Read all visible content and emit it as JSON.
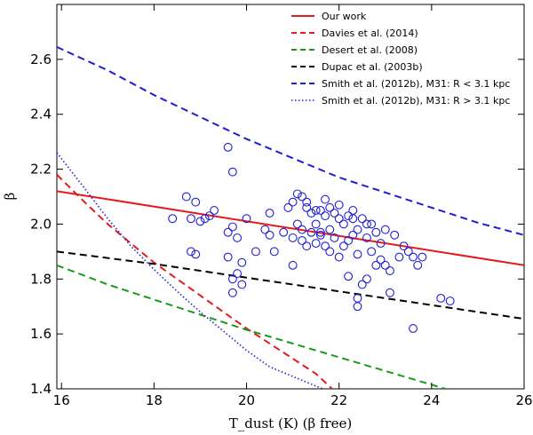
{
  "chart_data": {
    "type": "scatter",
    "xlabel": "T_dust (K) (β free)",
    "ylabel": "β",
    "xlim": [
      15.9,
      26
    ],
    "ylim": [
      1.4,
      2.8
    ],
    "xticks": [
      "16",
      "18",
      "20",
      "22",
      "24",
      "26"
    ],
    "yticks": [
      "1.4",
      "1.6",
      "1.8",
      "2.0",
      "2.2",
      "2.4",
      "2.6"
    ],
    "xtick_values": [
      16,
      18,
      20,
      22,
      24,
      26
    ],
    "ytick_values": [
      1.4,
      1.6,
      1.8,
      2.0,
      2.2,
      2.4,
      2.6
    ],
    "grid": false,
    "legend_position": "top-right",
    "series": [
      {
        "name": "Our work",
        "style": "solid",
        "color": "#e41a1c",
        "x": [
          15.9,
          26
        ],
        "y": [
          2.12,
          1.85
        ]
      },
      {
        "name": "Davies et al. (2014)",
        "style": "dashed",
        "color": "#e41a1c",
        "x": [
          15.9,
          16.5,
          17,
          17.5,
          18,
          18.5,
          19,
          19.5,
          20,
          20.5,
          21,
          21.5,
          21.85
        ],
        "y": [
          2.18,
          2.08,
          2.0,
          1.93,
          1.86,
          1.8,
          1.74,
          1.68,
          1.62,
          1.565,
          1.51,
          1.455,
          1.4
        ]
      },
      {
        "name": "Desert et al. (2008)",
        "style": "dashed",
        "color": "#1a9a1a",
        "x": [
          15.9,
          17,
          18,
          19,
          20,
          21,
          22,
          23,
          24.3
        ],
        "y": [
          1.85,
          1.78,
          1.725,
          1.67,
          1.615,
          1.565,
          1.515,
          1.465,
          1.4
        ]
      },
      {
        "name": "Dupac et al. (2003b)",
        "style": "dashed",
        "color": "#000000",
        "x": [
          15.9,
          18,
          20,
          22,
          24,
          26
        ],
        "y": [
          1.9,
          1.855,
          1.805,
          1.755,
          1.705,
          1.655
        ]
      },
      {
        "name": "Smith et al. (2012b), M31: R < 3.1 kpc",
        "style": "dashed",
        "color": "#1f1fd1",
        "x": [
          15.9,
          17,
          18,
          19,
          20,
          21,
          22,
          23,
          24,
          25,
          26
        ],
        "y": [
          2.645,
          2.56,
          2.47,
          2.39,
          2.31,
          2.24,
          2.17,
          2.115,
          2.06,
          2.005,
          1.96
        ]
      },
      {
        "name": "Smith et al. (2012b), M31: R > 3.1 kpc",
        "style": "dotted",
        "color": "#1f1fd1",
        "x": [
          15.9,
          16.5,
          17,
          17.5,
          18,
          18.5,
          19,
          19.5,
          20,
          20.5,
          21,
          21.5,
          21.65
        ],
        "y": [
          2.26,
          2.13,
          2.02,
          1.92,
          1.835,
          1.755,
          1.68,
          1.61,
          1.54,
          1.48,
          1.445,
          1.41,
          1.4
        ]
      }
    ],
    "scatter": {
      "color": "#1f1fd1",
      "points": [
        [
          18.4,
          2.02
        ],
        [
          18.7,
          2.1
        ],
        [
          18.8,
          2.02
        ],
        [
          18.9,
          2.08
        ],
        [
          19.0,
          2.01
        ],
        [
          19.1,
          2.02
        ],
        [
          19.2,
          2.03
        ],
        [
          19.3,
          2.05
        ],
        [
          18.8,
          1.9
        ],
        [
          18.9,
          1.89
        ],
        [
          19.6,
          2.28
        ],
        [
          19.7,
          2.19
        ],
        [
          19.6,
          1.97
        ],
        [
          19.7,
          1.99
        ],
        [
          19.8,
          1.95
        ],
        [
          19.6,
          1.88
        ],
        [
          19.7,
          1.8
        ],
        [
          19.8,
          1.82
        ],
        [
          19.7,
          1.75
        ],
        [
          19.9,
          1.78
        ],
        [
          19.9,
          1.86
        ],
        [
          20.0,
          2.02
        ],
        [
          20.2,
          1.9
        ],
        [
          20.4,
          1.98
        ],
        [
          20.5,
          2.04
        ],
        [
          20.5,
          1.96
        ],
        [
          20.6,
          1.9
        ],
        [
          20.8,
          1.97
        ],
        [
          20.9,
          2.06
        ],
        [
          21.0,
          2.08
        ],
        [
          21.0,
          1.95
        ],
        [
          21.0,
          1.85
        ],
        [
          21.1,
          2.0
        ],
        [
          21.2,
          2.1
        ],
        [
          21.3,
          2.08
        ],
        [
          21.2,
          1.98
        ],
        [
          21.3,
          1.92
        ],
        [
          21.4,
          1.97
        ],
        [
          21.4,
          2.04
        ],
        [
          21.5,
          2.0
        ],
        [
          21.5,
          1.93
        ],
        [
          21.6,
          2.05
        ],
        [
          21.6,
          1.97
        ],
        [
          21.7,
          2.03
        ],
        [
          21.7,
          1.92
        ],
        [
          21.8,
          2.06
        ],
        [
          21.8,
          1.98
        ],
        [
          21.9,
          2.04
        ],
        [
          21.9,
          1.95
        ],
        [
          22.0,
          2.07
        ],
        [
          22.0,
          1.88
        ],
        [
          22.1,
          2.0
        ],
        [
          22.1,
          1.92
        ],
        [
          22.2,
          2.03
        ],
        [
          22.2,
          1.81
        ],
        [
          22.3,
          2.05
        ],
        [
          22.3,
          1.96
        ],
        [
          22.4,
          1.98
        ],
        [
          22.4,
          1.89
        ],
        [
          22.5,
          2.02
        ],
        [
          22.5,
          1.78
        ],
        [
          22.6,
          1.95
        ],
        [
          22.6,
          1.8
        ],
        [
          22.7,
          1.9
        ],
        [
          22.7,
          2.0
        ],
        [
          22.8,
          1.97
        ],
        [
          22.9,
          1.87
        ],
        [
          22.9,
          1.93
        ],
        [
          23.0,
          1.85
        ],
        [
          23.0,
          1.98
        ],
        [
          23.1,
          1.83
        ],
        [
          23.1,
          1.75
        ],
        [
          23.2,
          1.96
        ],
        [
          23.3,
          1.88
        ],
        [
          23.4,
          1.92
        ],
        [
          23.5,
          1.9
        ],
        [
          23.6,
          1.88
        ],
        [
          23.7,
          1.85
        ],
        [
          23.8,
          1.88
        ],
        [
          23.6,
          1.62
        ],
        [
          22.4,
          1.7
        ],
        [
          22.4,
          1.73
        ],
        [
          24.2,
          1.73
        ],
        [
          24.4,
          1.72
        ],
        [
          21.1,
          2.11
        ],
        [
          21.3,
          2.06
        ],
        [
          21.5,
          2.05
        ],
        [
          21.7,
          2.09
        ],
        [
          22.0,
          2.02
        ],
        [
          22.3,
          2.02
        ],
        [
          22.6,
          2.0
        ],
        [
          21.2,
          1.94
        ],
        [
          21.6,
          1.96
        ],
        [
          21.8,
          1.9
        ],
        [
          22.2,
          1.94
        ],
        [
          22.8,
          1.85
        ]
      ]
    }
  }
}
